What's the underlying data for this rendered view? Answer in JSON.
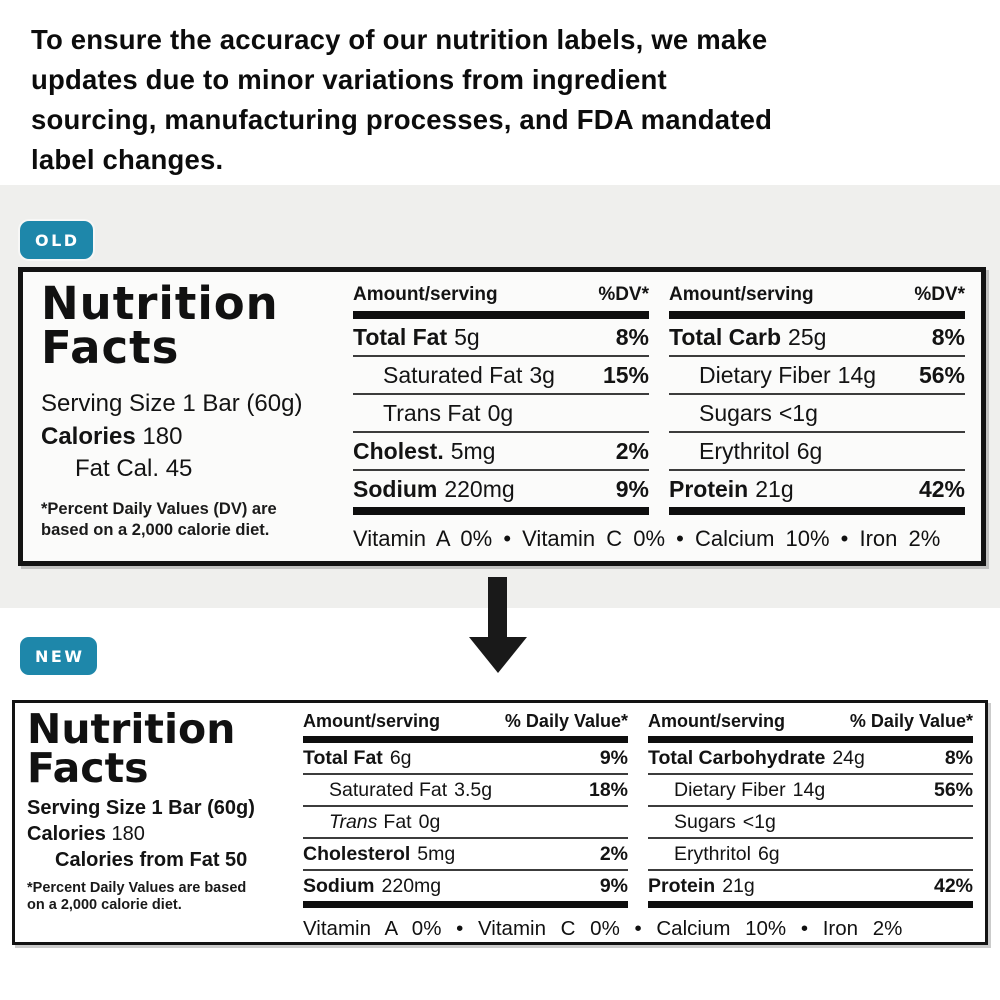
{
  "colors": {
    "badge": "#1e87aa",
    "band": "#efefed"
  },
  "intro": {
    "lines": [
      "To ensure the accuracy of our nutrition labels, we make",
      "updates due to minor variations from ingredient",
      "sourcing, manufacturing processes, and FDA mandated",
      "label changes."
    ]
  },
  "badges": {
    "old": "OLD",
    "new": "NEW"
  },
  "old_label": {
    "title_line1": "Nutrition",
    "title_line2": "Facts",
    "serving": "Serving Size 1 Bar (60g)",
    "calories_label": "Calories",
    "calories_value": "180",
    "fat_cal": "Fat Cal. 45",
    "footnote_line1": "*Percent Daily Values (DV) are",
    "footnote_line2": "based on a 2,000 calorie diet.",
    "amount_header": "Amount/serving",
    "dv_header": "%DV*",
    "left_rows": [
      {
        "name": "Total Fat",
        "amount": "5g",
        "dv": "8%"
      },
      {
        "name": "Saturated Fat",
        "amount": "3g",
        "dv": "15%"
      },
      {
        "name": "Trans Fat",
        "amount": "0g",
        "dv": ""
      },
      {
        "name": "Cholest.",
        "amount": "5mg",
        "dv": "2%"
      },
      {
        "name": "Sodium",
        "amount": "220mg",
        "dv": "9%"
      }
    ],
    "right_rows": [
      {
        "name": "Total Carb",
        "amount": "25g",
        "dv": "8%"
      },
      {
        "name": "Dietary Fiber",
        "amount": "14g",
        "dv": "56%"
      },
      {
        "name": "Sugars",
        "amount": "<1g",
        "dv": ""
      },
      {
        "name": "Erythritol",
        "amount": "6g",
        "dv": ""
      },
      {
        "name": "Protein",
        "amount": "21g",
        "dv": "42%"
      }
    ],
    "vitamins": "Vitamin A 0% • Vitamin C 0% • Calcium 10% • Iron 2%"
  },
  "new_label": {
    "title_line1": "Nutrition",
    "title_line2": "Facts",
    "serving": "Serving Size 1 Bar (60g)",
    "calories_label": "Calories",
    "calories_value": "180",
    "calories_from_fat": "Calories from Fat 50",
    "footnote_line1": "*Percent Daily Values are based",
    "footnote_line2": "on a 2,000 calorie diet.",
    "amount_header": "Amount/serving",
    "dv_header": "% Daily Value*",
    "left_rows": [
      {
        "name": "Total Fat",
        "amount": "6g",
        "dv": "9%"
      },
      {
        "name": "Saturated Fat",
        "amount": "3.5g",
        "dv": "18%"
      },
      {
        "name": "Trans",
        "name2": "Fat",
        "amount": "0g",
        "dv": ""
      },
      {
        "name": "Cholesterol",
        "amount": "5mg",
        "dv": "2%"
      },
      {
        "name": "Sodium",
        "amount": "220mg",
        "dv": "9%"
      }
    ],
    "right_rows": [
      {
        "name": "Total Carbohydrate",
        "amount": "24g",
        "dv": "8%"
      },
      {
        "name": "Dietary Fiber",
        "amount": "14g",
        "dv": "56%"
      },
      {
        "name": "Sugars",
        "amount": "<1g",
        "dv": ""
      },
      {
        "name": "Erythritol",
        "amount": "6g",
        "dv": ""
      },
      {
        "name": "Protein",
        "amount": "21g",
        "dv": "42%"
      }
    ],
    "vitamins": "Vitamin A 0% • Vitamin C 0% • Calcium 10% • Iron 2%"
  }
}
